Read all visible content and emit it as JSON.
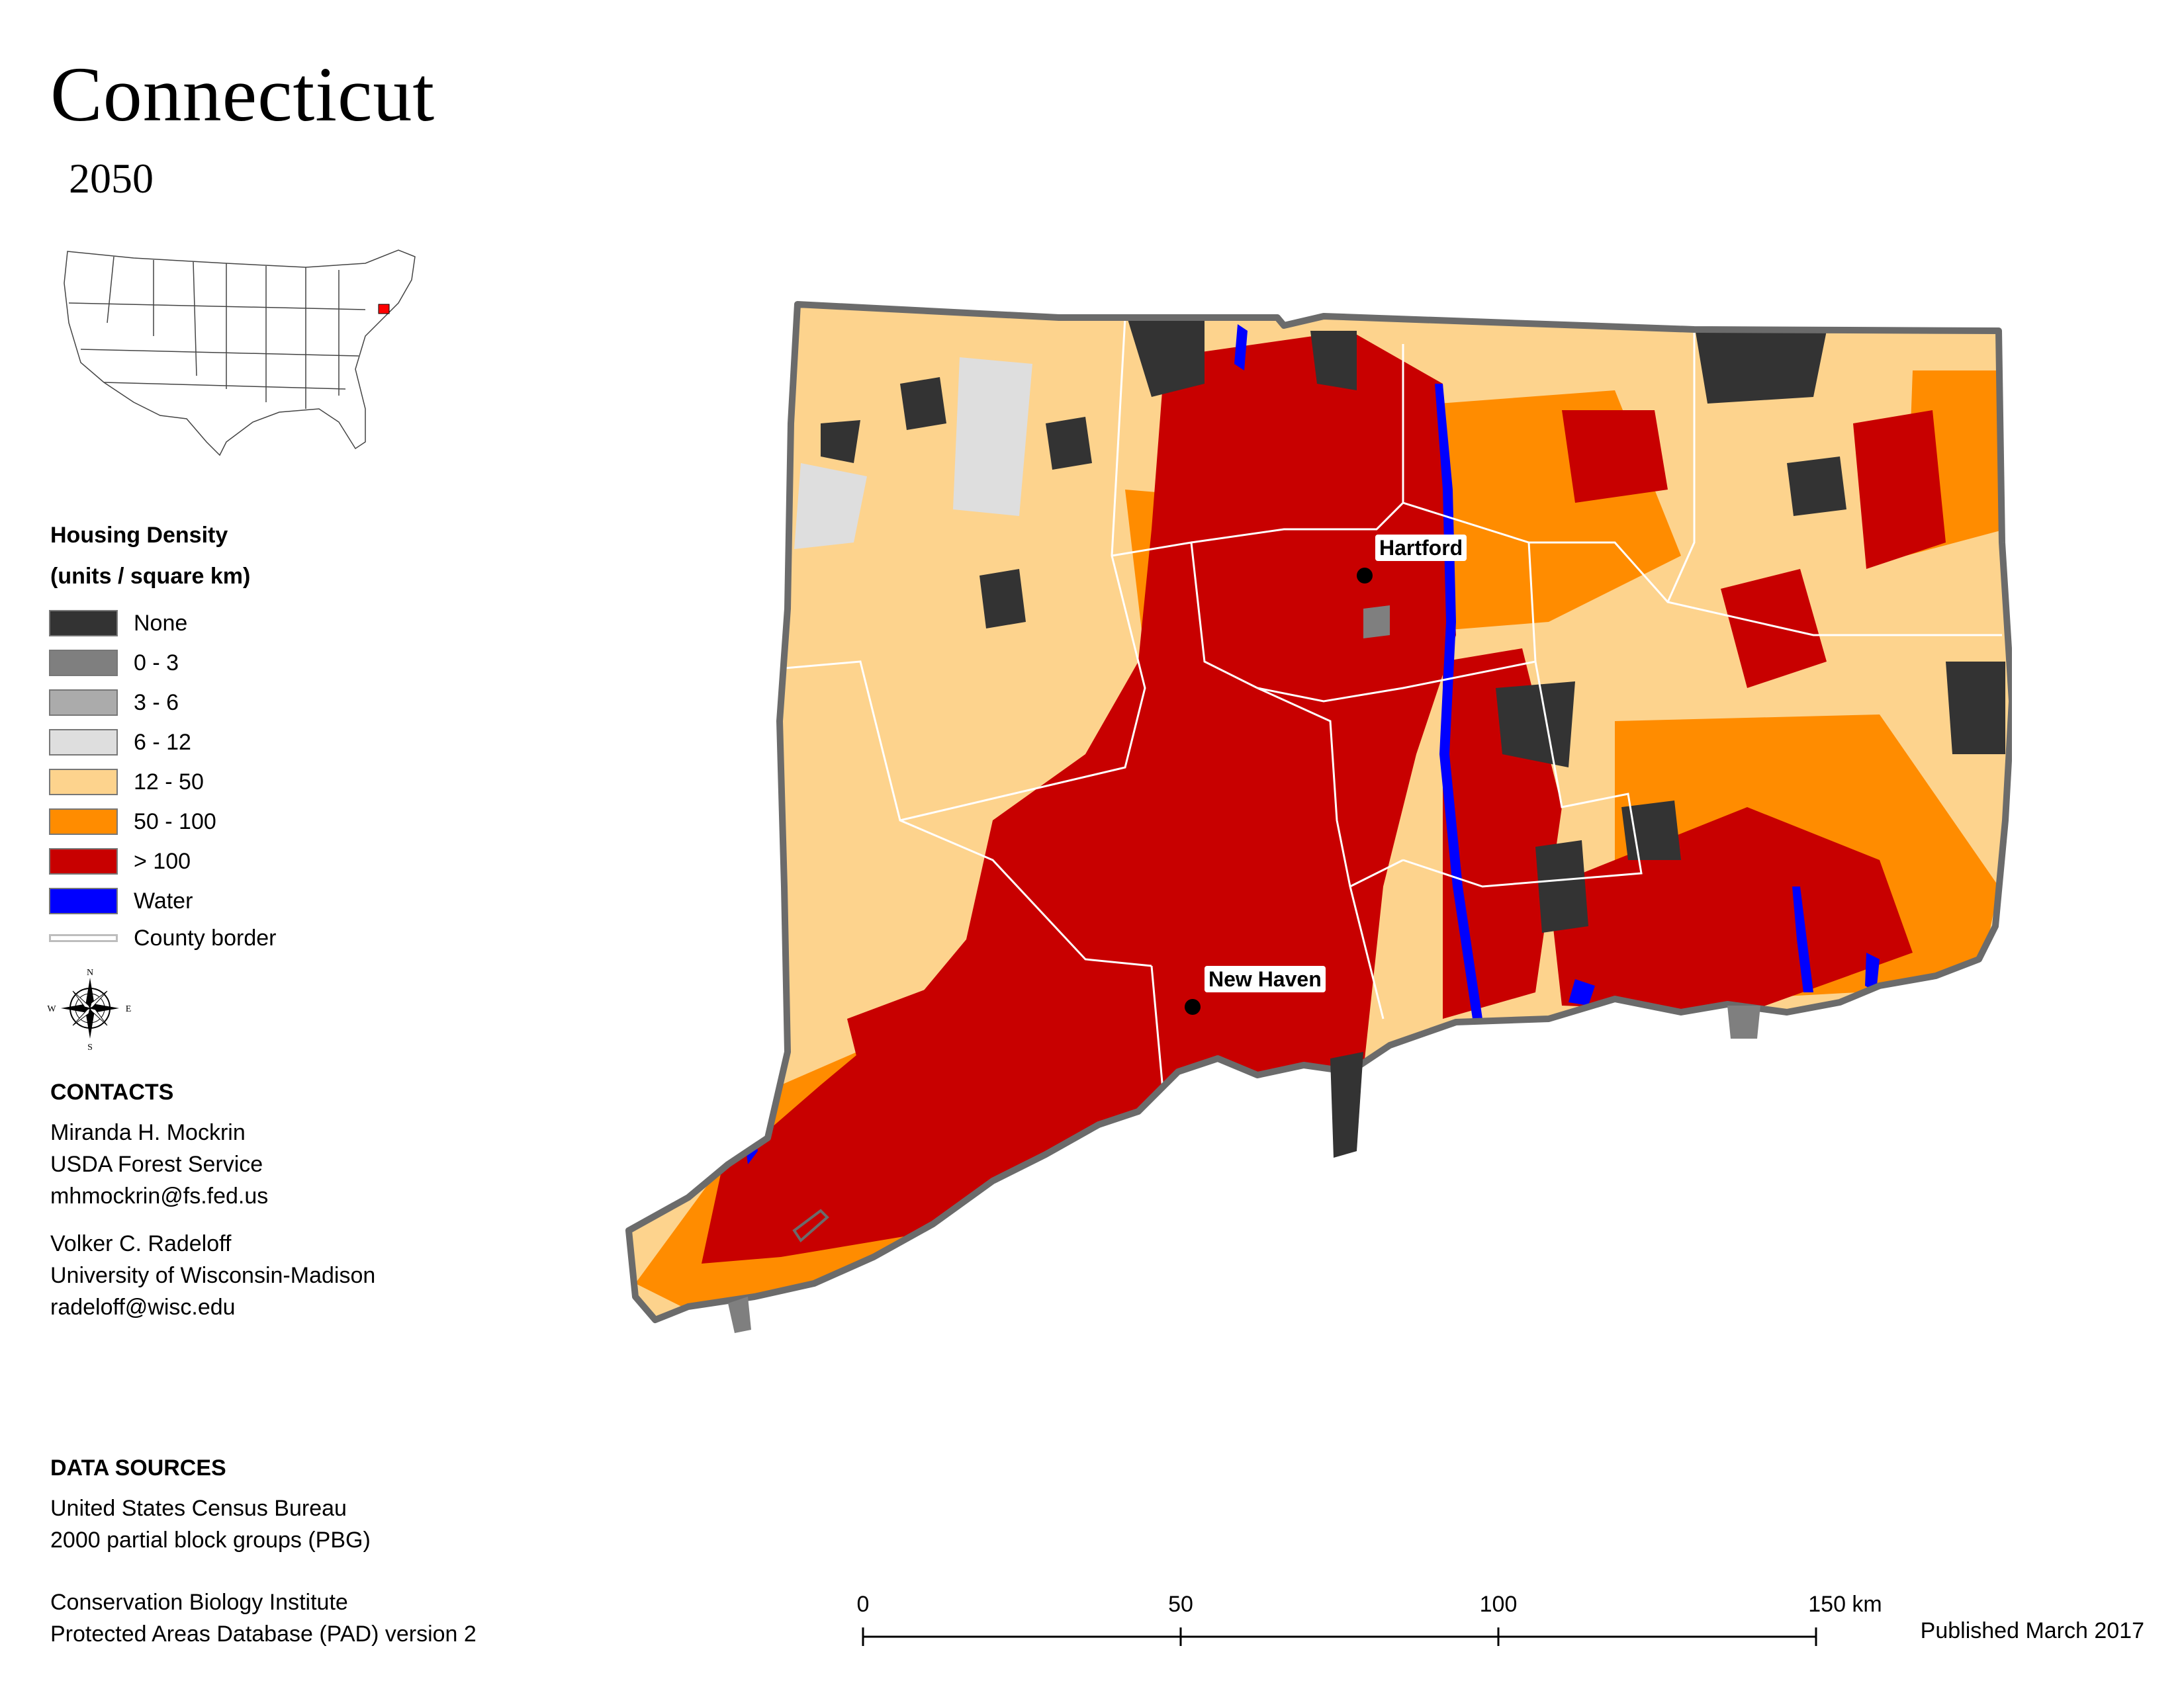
{
  "title": "Connecticut",
  "year": "2050",
  "legend": {
    "title_line1": "Housing Density",
    "title_line2": "(units / square km)",
    "items": [
      {
        "label": "None",
        "color": "#333333"
      },
      {
        "label": "0 - 3",
        "color": "#7f7f7f"
      },
      {
        "label": "3 - 6",
        "color": "#ababab"
      },
      {
        "label": "6 - 12",
        "color": "#dedede"
      },
      {
        "label": "12 - 50",
        "color": "#fdd38d"
      },
      {
        "label": "50 - 100",
        "color": "#ff8c00"
      },
      {
        "label": "> 100",
        "color": "#c80000"
      },
      {
        "label": "Water",
        "color": "#0000ff"
      }
    ],
    "county_border_label": "County border"
  },
  "compass": {
    "n": "N",
    "s": "S",
    "e": "E",
    "w": "W"
  },
  "contacts": {
    "heading": "CONTACTS",
    "person1": {
      "name": "Miranda H. Mockrin",
      "org": "USDA Forest Service",
      "email": "mhmockrin@fs.fed.us"
    },
    "person2": {
      "name": "Volker C. Radeloff",
      "org": "University of Wisconsin-Madison",
      "email": "radeloff@wisc.edu"
    }
  },
  "data_sources": {
    "heading": "DATA SOURCES",
    "source1_line1": "United States Census Bureau",
    "source1_line2": "2000 partial block groups (PBG)",
    "source2_line1": "Conservation Biology Institute",
    "source2_line2": "Protected Areas Database (PAD) version 2"
  },
  "cities": {
    "hartford": "Hartford",
    "new_haven": "New Haven"
  },
  "scale_bar": {
    "ticks": [
      "0",
      "50",
      "100",
      "150 km"
    ]
  },
  "published": "Published March 2017",
  "map_colors": {
    "outline": "#6b6b6b",
    "county": "#ffffff"
  }
}
